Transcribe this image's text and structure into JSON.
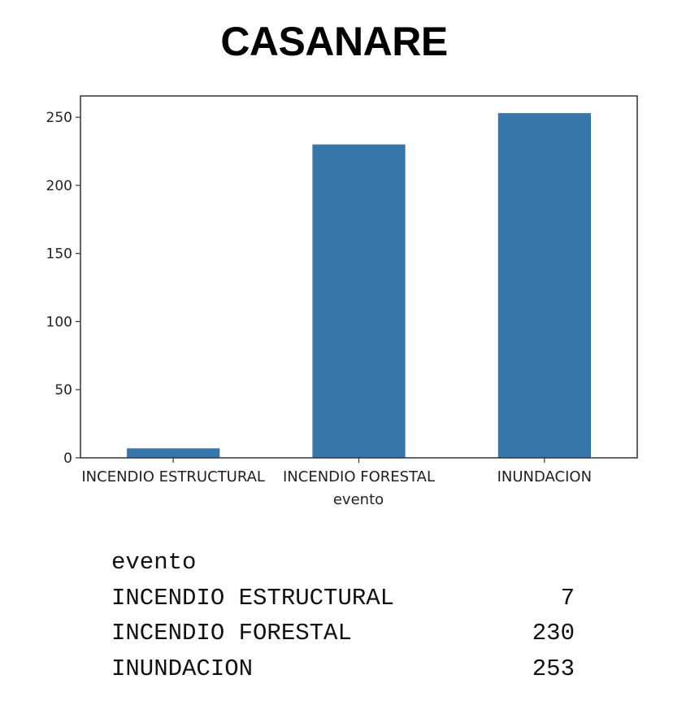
{
  "title": "CASANARE",
  "colors": {
    "bar": "#3776ab",
    "axis": "#333333",
    "background": "#ffffff"
  },
  "chart_data": {
    "type": "bar",
    "title": "CASANARE",
    "xlabel": "evento",
    "ylabel": "",
    "categories": [
      "INCENDIO ESTRUCTURAL",
      "INCENDIO FORESTAL",
      "INUNDACION"
    ],
    "values": [
      7,
      230,
      253
    ],
    "ylim": [
      0,
      265.6
    ],
    "yticks": [
      0,
      50,
      100,
      150,
      200,
      250
    ],
    "grid": false,
    "legend": "none"
  },
  "table": {
    "header": "evento",
    "rows": [
      {
        "label": "INCENDIO ESTRUCTURAL",
        "value": "7"
      },
      {
        "label": "INCENDIO FORESTAL",
        "value": "230"
      },
      {
        "label": "INUNDACION",
        "value": "253"
      }
    ]
  }
}
